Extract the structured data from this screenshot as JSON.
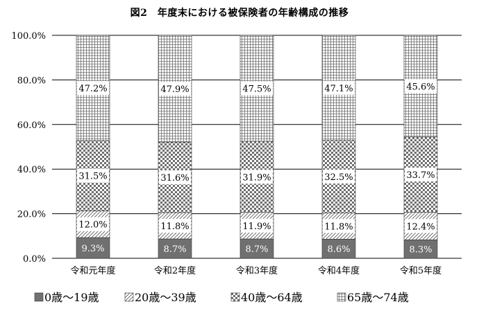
{
  "chart_data": {
    "type": "bar",
    "stacked": true,
    "percent_stacked": true,
    "title": "図2　年度末における被保険者の年齢構成の推移",
    "categories": [
      "令和元年度",
      "令和2年度",
      "令和3年度",
      "令和4年度",
      "令和5年度"
    ],
    "series": [
      {
        "name": "0歳～19歳",
        "values": [
          9.3,
          8.7,
          8.7,
          8.6,
          8.3
        ],
        "labels": [
          "9.3%",
          "8.7%",
          "8.7%",
          "8.6%",
          "8.3%"
        ],
        "pattern": "solid-gray"
      },
      {
        "name": "20歳～39歳",
        "values": [
          12.0,
          11.8,
          11.9,
          11.8,
          12.4
        ],
        "labels": [
          "12.0%",
          "11.8%",
          "11.9%",
          "11.8%",
          "12.4%"
        ],
        "pattern": "diagonal-hatch"
      },
      {
        "name": "40歳～64歳",
        "values": [
          31.5,
          31.6,
          31.9,
          32.5,
          33.7
        ],
        "labels": [
          "31.5%",
          "31.6%",
          "31.9%",
          "32.5%",
          "33.7%"
        ],
        "pattern": "checker"
      },
      {
        "name": "65歳～74歳",
        "values": [
          47.2,
          47.9,
          47.5,
          47.1,
          45.6
        ],
        "labels": [
          "47.2%",
          "47.9%",
          "47.5%",
          "47.1%",
          "45.6%"
        ],
        "pattern": "fine-grid"
      }
    ],
    "yticks": [
      "0.0%",
      "20.0%",
      "40.0%",
      "60.0%",
      "80.0%",
      "100.0%"
    ],
    "ylim": [
      0,
      100
    ],
    "xlabel": "",
    "ylabel": "",
    "grid": true,
    "legend_position": "bottom",
    "colors": {
      "solid": "#707070",
      "pattern_line": "#555555",
      "gridline": "#000000"
    }
  }
}
